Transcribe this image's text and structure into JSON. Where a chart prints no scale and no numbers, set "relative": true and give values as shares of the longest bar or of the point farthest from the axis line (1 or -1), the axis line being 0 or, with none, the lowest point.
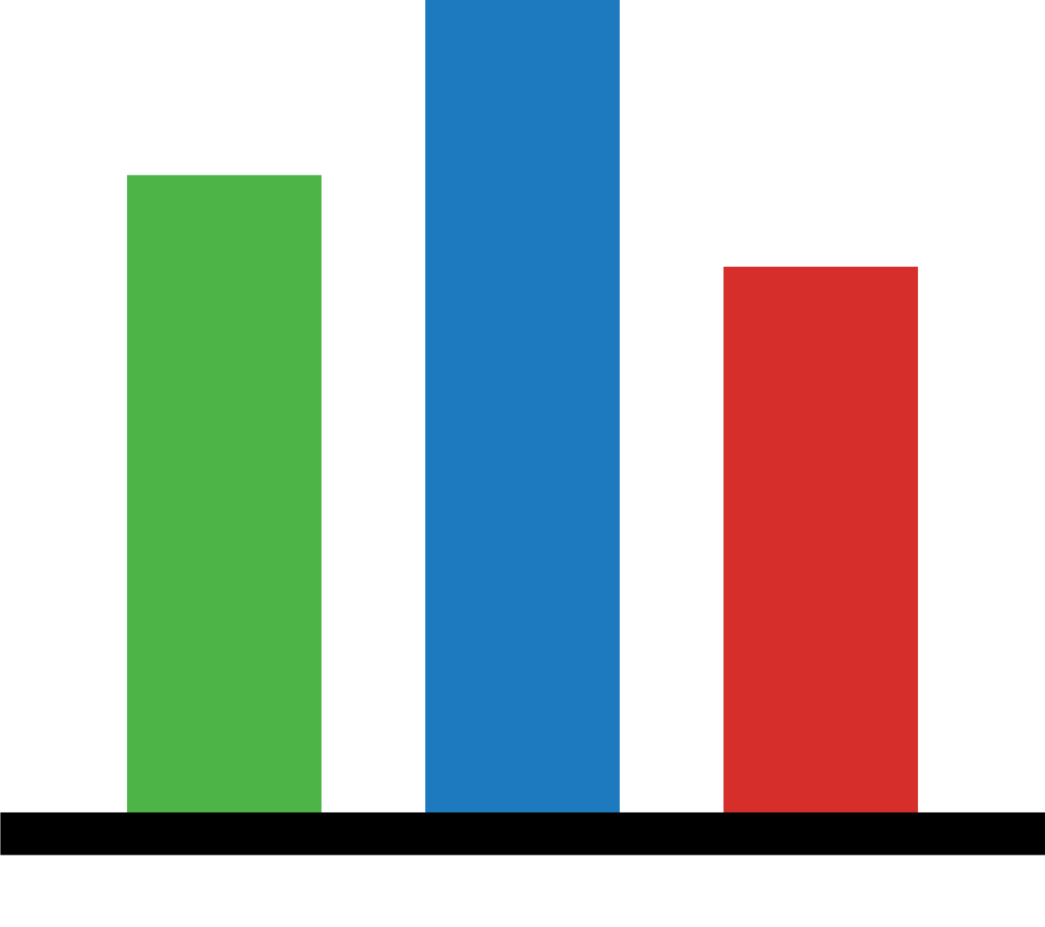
{
  "chart_data": {
    "type": "bar",
    "categories": [
      null,
      null,
      null
    ],
    "values": [
      0.79,
      1,
      0.68
    ],
    "colors": [
      "#4db548",
      "#1e7abf",
      "#d62e2b"
    ],
    "relative": true
  }
}
